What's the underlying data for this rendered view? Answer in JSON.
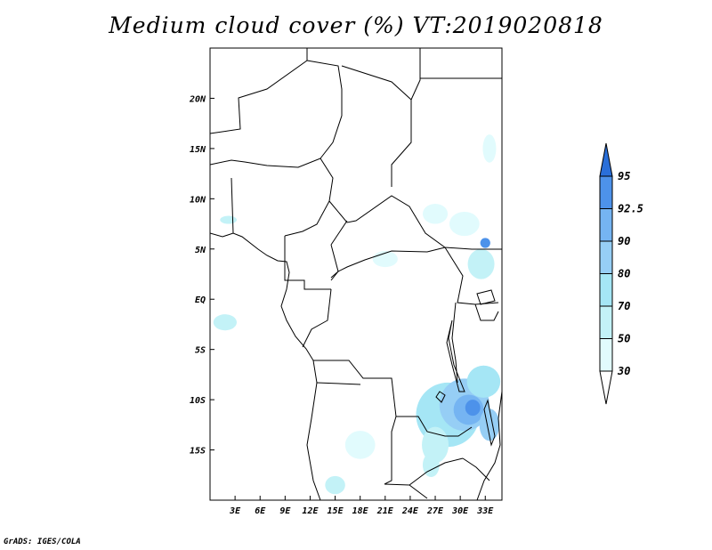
{
  "title": "Medium cloud cover (%) VT:2019020818",
  "credit": "GrADS: IGES/COLA",
  "map": {
    "lon_range": [
      0,
      35
    ],
    "lat_range": [
      -20,
      25
    ],
    "x_ticks": [
      "3E",
      "6E",
      "9E",
      "12E",
      "15E",
      "18E",
      "21E",
      "24E",
      "27E",
      "30E",
      "33E"
    ],
    "x_tick_values": [
      3,
      6,
      9,
      12,
      15,
      18,
      21,
      24,
      27,
      30,
      33
    ],
    "y_ticks": [
      "20N",
      "15N",
      "10N",
      "5N",
      "EQ",
      "5S",
      "10S",
      "15S"
    ],
    "y_tick_values": [
      20,
      15,
      10,
      5,
      0,
      -5,
      -10,
      -15
    ]
  },
  "colorbar": {
    "levels": [
      "30",
      "50",
      "70",
      "80",
      "90",
      "92.5",
      "95"
    ],
    "colors": [
      "#e1fbfd",
      "#c3f2f7",
      "#a5e6f5",
      "#96cef5",
      "#75b4f2",
      "#4d92ea",
      "#2a6fd9"
    ]
  },
  "cloud_patches": [
    {
      "lon": 28.5,
      "lat": -11.5,
      "rx": 3.8,
      "ry": 3.2,
      "color": "#a5e6f5"
    },
    {
      "lon": 30.5,
      "lat": -10.5,
      "rx": 3.0,
      "ry": 2.6,
      "color": "#96cef5"
    },
    {
      "lon": 31.0,
      "lat": -11.0,
      "rx": 1.8,
      "ry": 1.5,
      "color": "#75b4f2"
    },
    {
      "lon": 31.5,
      "lat": -10.8,
      "rx": 0.9,
      "ry": 0.8,
      "color": "#4d92ea"
    },
    {
      "lon": 32.8,
      "lat": -8.2,
      "rx": 2.0,
      "ry": 1.6,
      "color": "#a5e6f5"
    },
    {
      "lon": 27.0,
      "lat": -14.5,
      "rx": 1.6,
      "ry": 1.8,
      "color": "#c3f2f7"
    },
    {
      "lon": 26.5,
      "lat": -16.5,
      "rx": 1.0,
      "ry": 1.2,
      "color": "#c3f2f7"
    },
    {
      "lon": 33.5,
      "lat": -12.5,
      "rx": 1.2,
      "ry": 1.6,
      "color": "#96cef5"
    },
    {
      "lon": 32.5,
      "lat": 3.5,
      "rx": 1.6,
      "ry": 1.5,
      "color": "#c3f2f7"
    },
    {
      "lon": 33.0,
      "lat": 5.6,
      "rx": 0.6,
      "ry": 0.5,
      "color": "#4d92ea"
    },
    {
      "lon": 30.5,
      "lat": 7.5,
      "rx": 1.8,
      "ry": 1.2,
      "color": "#e1fbfd"
    },
    {
      "lon": 27.0,
      "lat": 8.5,
      "rx": 1.5,
      "ry": 1.0,
      "color": "#e1fbfd"
    },
    {
      "lon": 1.8,
      "lat": -2.3,
      "rx": 1.4,
      "ry": 0.8,
      "color": "#c3f2f7"
    },
    {
      "lon": 2.2,
      "lat": 7.9,
      "rx": 1.0,
      "ry": 0.4,
      "color": "#c3f2f7"
    },
    {
      "lon": 15.0,
      "lat": -18.5,
      "rx": 1.2,
      "ry": 0.9,
      "color": "#c3f2f7"
    },
    {
      "lon": 18.0,
      "lat": -14.5,
      "rx": 1.8,
      "ry": 1.4,
      "color": "#e1fbfd"
    },
    {
      "lon": 21.0,
      "lat": 4.0,
      "rx": 1.5,
      "ry": 0.8,
      "color": "#e1fbfd"
    },
    {
      "lon": 33.5,
      "lat": 15.0,
      "rx": 0.8,
      "ry": 1.4,
      "color": "#e1fbfd"
    }
  ]
}
